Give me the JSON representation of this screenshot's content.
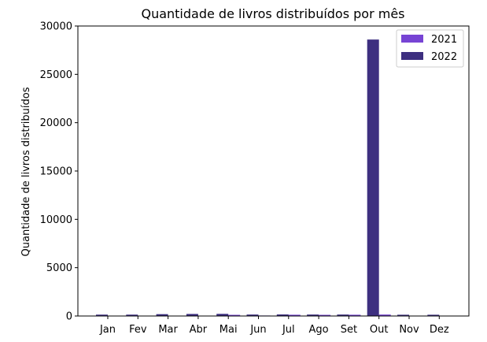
{
  "chart_data": {
    "type": "bar",
    "title": "Quantidade de livros distribuídos por mês",
    "xlabel": "",
    "ylabel": "Quantidade de livros distribuídos",
    "categories": [
      "Jan",
      "Fev",
      "Mar",
      "Abr",
      "Mai",
      "Jun",
      "Jul",
      "Ago",
      "Set",
      "Out",
      "Nov",
      "Dez"
    ],
    "series": [
      {
        "name": "2021",
        "color": "#7744d4",
        "values": [
          0,
          0,
          0,
          40,
          120,
          50,
          130,
          120,
          130,
          150,
          0,
          0
        ]
      },
      {
        "name": "2022",
        "color": "#3d2f80",
        "values": [
          140,
          140,
          190,
          210,
          220,
          150,
          160,
          150,
          150,
          28600,
          130,
          130
        ]
      }
    ],
    "ylim": [
      0,
      30000
    ],
    "yticks": [
      0,
      5000,
      10000,
      15000,
      20000,
      25000,
      30000
    ],
    "legend_position": "top-right",
    "grid": false
  }
}
